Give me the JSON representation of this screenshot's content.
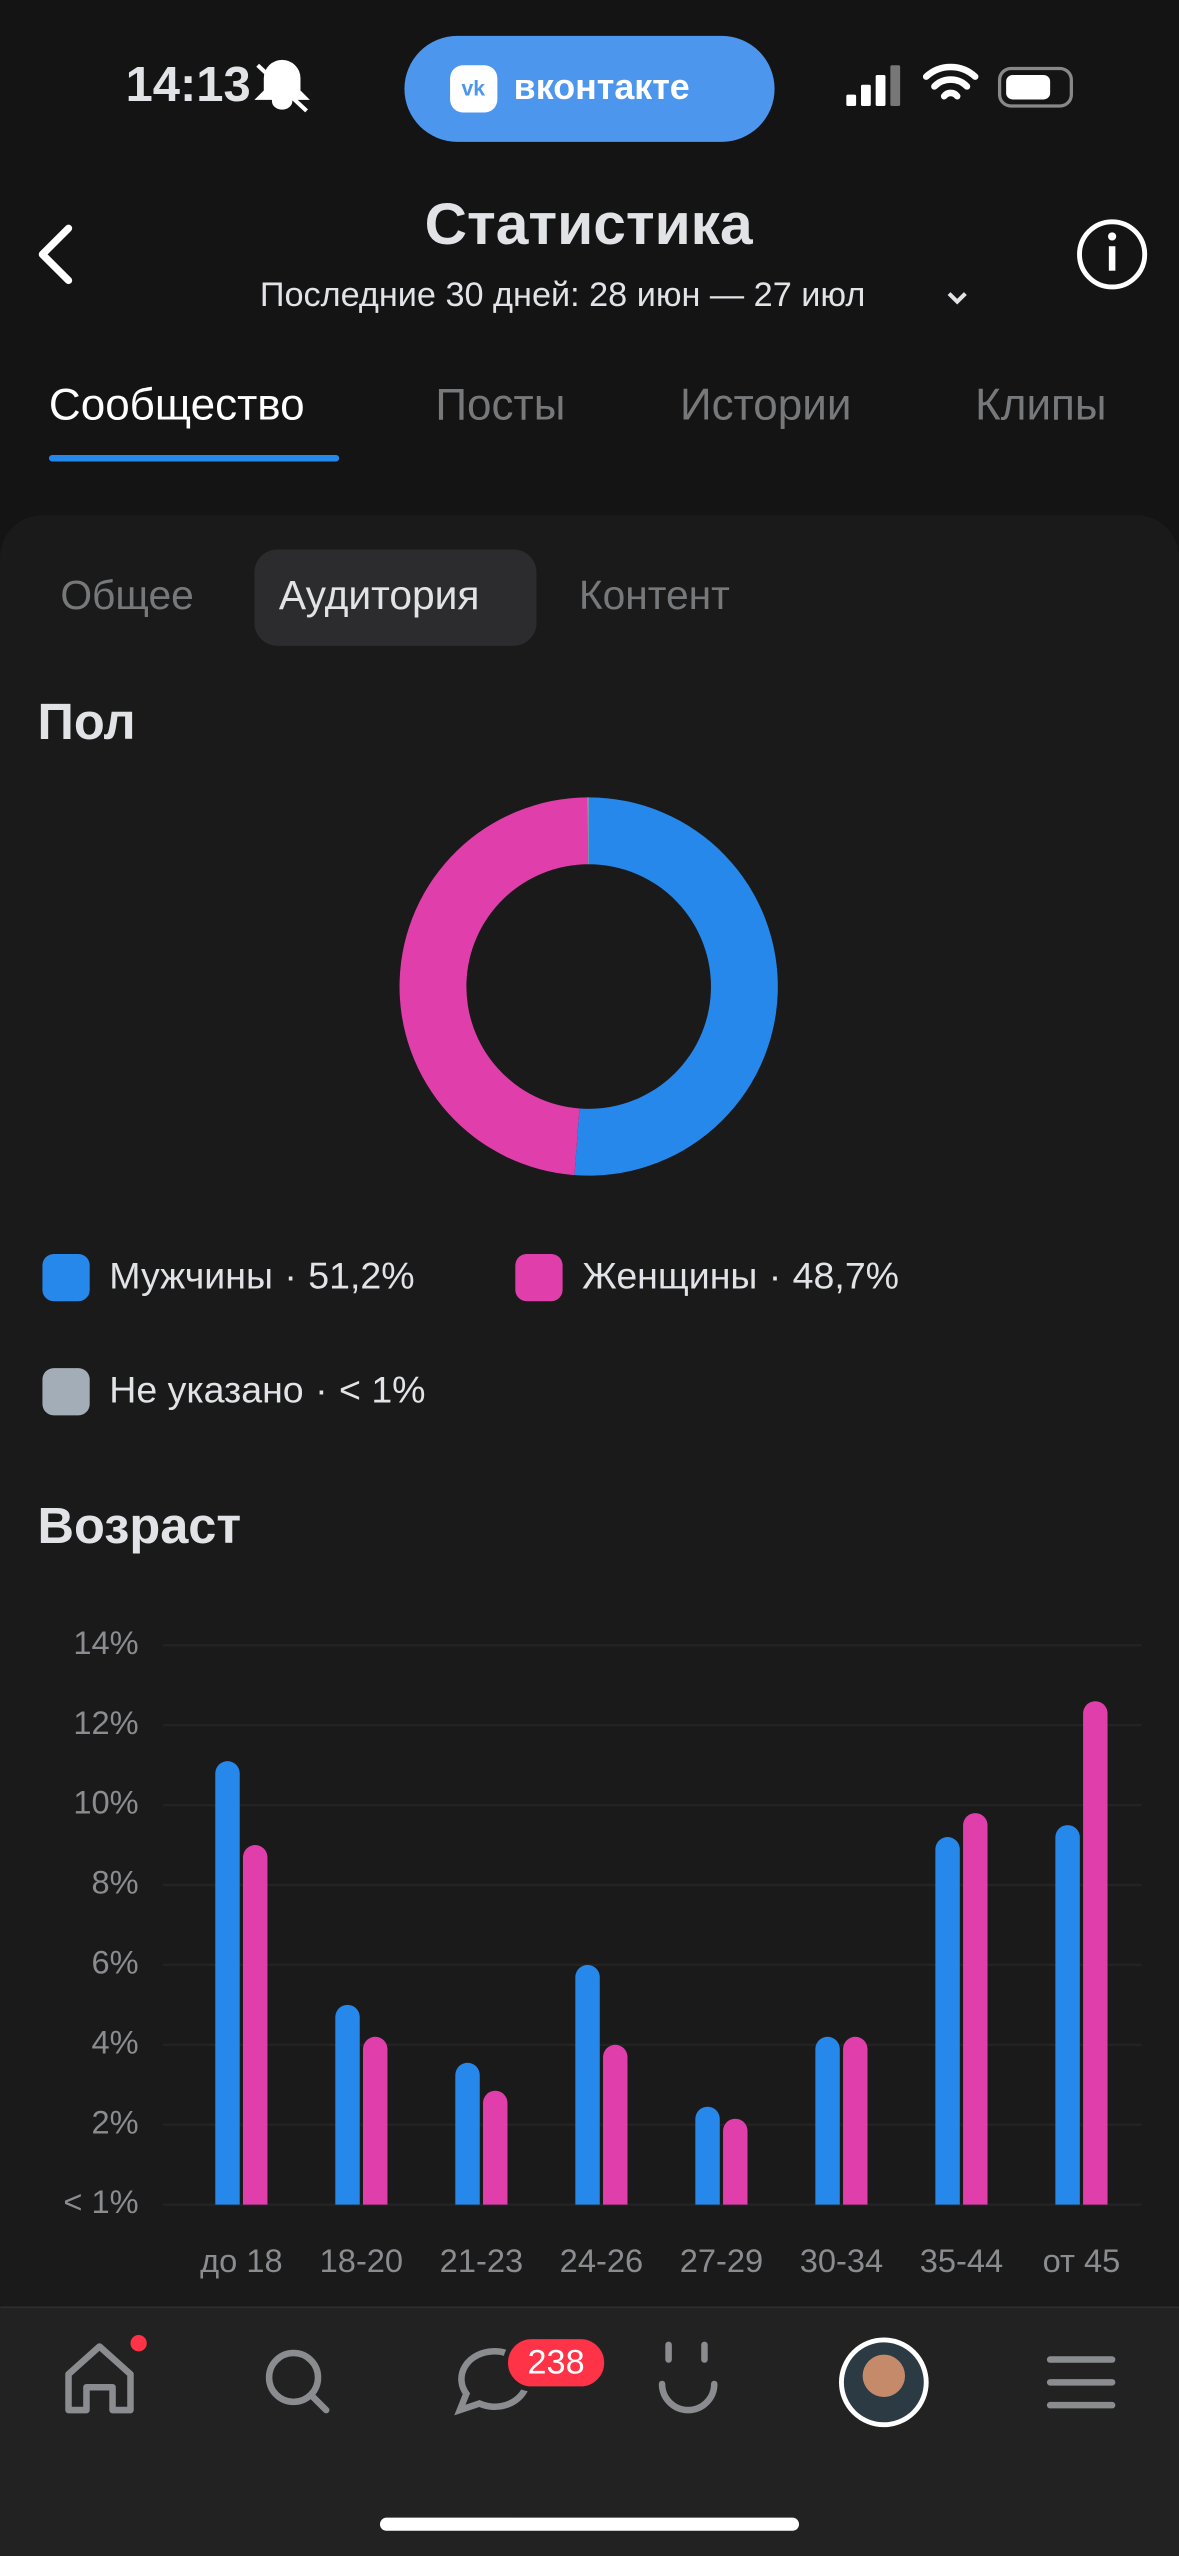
{
  "status_bar": {
    "time": "14:13",
    "app_pill": "вконтакте"
  },
  "header": {
    "title": "Статистика",
    "subtitle": "Последние 30 дней: 28 июн — 27 июл"
  },
  "tabs": [
    "Сообщество",
    "Посты",
    "Истории",
    "Клипы"
  ],
  "subtabs": [
    "Общее",
    "Аудитория",
    "Контент"
  ],
  "nav": {
    "messages_badge": 238
  },
  "chart_data": [
    {
      "type": "pie",
      "title": "Пол",
      "donut": true,
      "categories": [
        "Мужчины",
        "Женщины",
        "Не указано"
      ],
      "values": [
        51.2,
        48.7,
        0.1
      ],
      "value_labels": [
        "51,2%",
        "48,7%",
        "< 1%"
      ],
      "colors": [
        "#2688eb",
        "#e03fab",
        "#a3adb8"
      ],
      "legend_separator": "·"
    },
    {
      "type": "bar",
      "title": "Возраст",
      "categories": [
        "до 18",
        "18-20",
        "21-23",
        "24-26",
        "27-29",
        "30-34",
        "35-44",
        "от 45"
      ],
      "series": [
        {
          "color": "#2688eb",
          "values": [
            11.1,
            5.0,
            3.55,
            6.0,
            2.45,
            4.2,
            9.2,
            9.5
          ]
        },
        {
          "color": "#e03fab",
          "values": [
            9.0,
            4.2,
            2.85,
            4.0,
            2.15,
            4.2,
            9.8,
            12.6
          ]
        }
      ],
      "ylim": [
        0,
        14
      ],
      "yticks": [
        {
          "value": 0,
          "label": "< 1%"
        },
        {
          "value": 2,
          "label": "2%"
        },
        {
          "value": 4,
          "label": "4%"
        },
        {
          "value": 6,
          "label": "6%"
        },
        {
          "value": 8,
          "label": "8%"
        },
        {
          "value": 10,
          "label": "10%"
        },
        {
          "value": 12,
          "label": "12%"
        },
        {
          "value": 14,
          "label": "14%"
        }
      ],
      "grid": true
    }
  ]
}
